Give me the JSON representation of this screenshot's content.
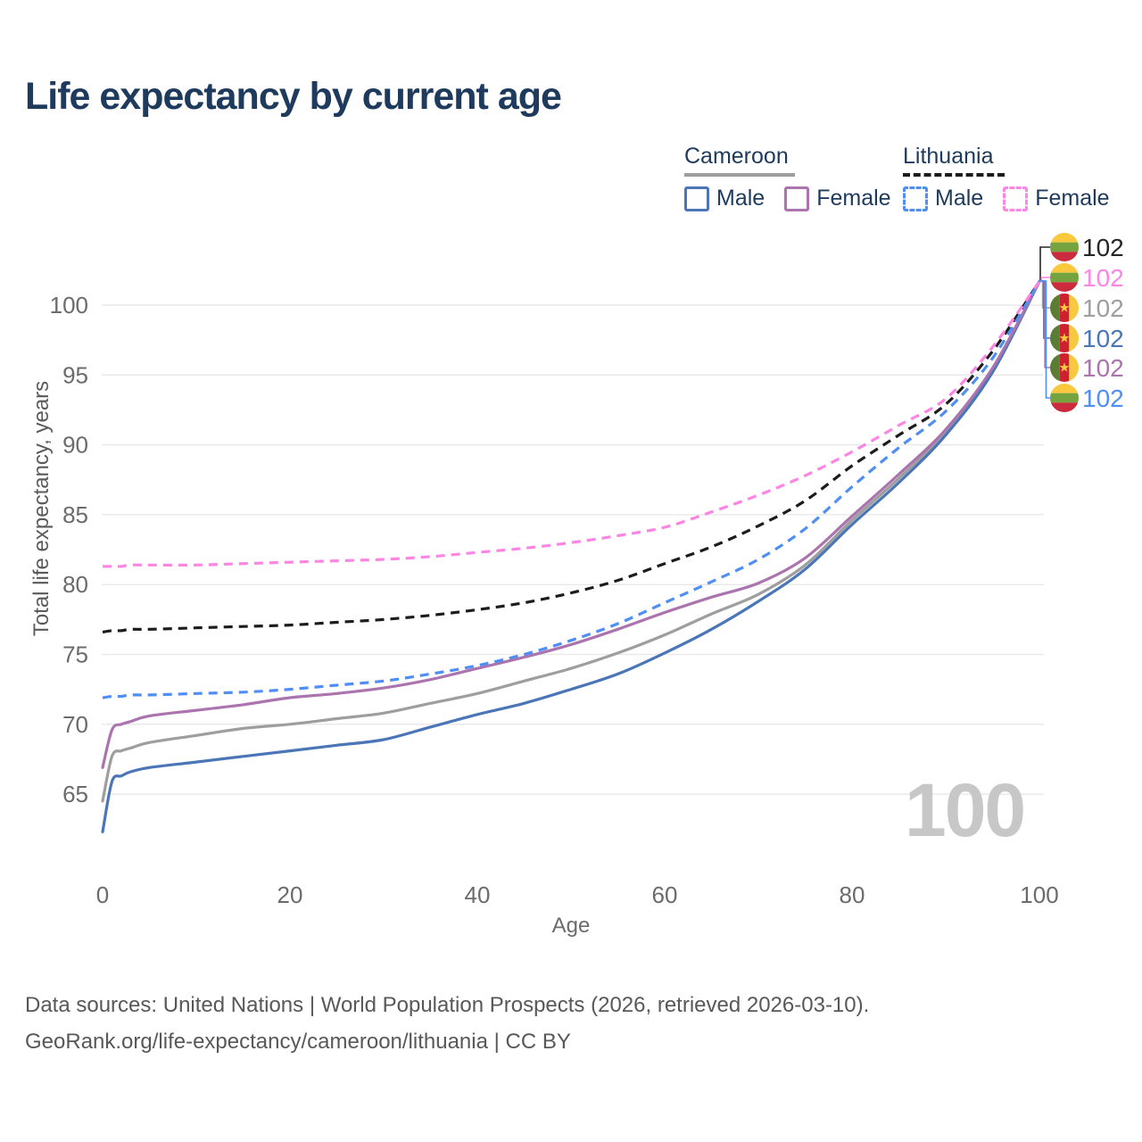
{
  "title": "Life expectancy by current age",
  "legend": {
    "cameroon": {
      "label": "Cameroon",
      "male_label": "Male",
      "female_label": "Female"
    },
    "lithuania": {
      "label": "Lithuania",
      "male_label": "Male",
      "female_label": "Female"
    }
  },
  "watermark_age": "100",
  "footer": {
    "line1": "Data sources: United Nations | World Population Prospects (2026, retrieved 2026-03-10).",
    "line2": "GeoRank.org/life-expectancy/cameroon/lithuania | CC BY"
  },
  "colors": {
    "title_text": "#1e3a5c",
    "tick_text": "#6b6b6b",
    "grid": "#e9e9e9",
    "footer_text": "#58585a",
    "watermark": "#c7c7c7",
    "cameroon_male": "#4a76b8",
    "cameroon_female": "#ab74ae",
    "cameroon_all": "#9e9e9e",
    "lithuania_male": "#4f8ef5",
    "lithuania_female": "#fd85e4",
    "lithuania_all": "#1c1c1c"
  },
  "chart_data": {
    "type": "line",
    "title": "Life expectancy by current age",
    "xlabel": "Age",
    "ylabel": "Total life expectancy, years",
    "xlim": [
      0,
      100
    ],
    "ylim": [
      62,
      103
    ],
    "xticks": [
      0,
      20,
      40,
      60,
      80,
      100
    ],
    "yticks": [
      65,
      70,
      75,
      80,
      85,
      90,
      95,
      100
    ],
    "grid": "horizontal",
    "legend_position": "top-right",
    "x": [
      0,
      1,
      2,
      3,
      5,
      10,
      15,
      20,
      25,
      30,
      35,
      40,
      45,
      50,
      55,
      60,
      65,
      70,
      75,
      80,
      85,
      90,
      95,
      100
    ],
    "series": [
      {
        "id": "cm_both",
        "name": "Cameroon",
        "country": "Cameroon",
        "color": "#9e9e9e",
        "dashed": false,
        "values": [
          64.5,
          67.7,
          68.1,
          68.3,
          68.7,
          69.2,
          69.7,
          70.0,
          70.4,
          70.8,
          71.5,
          72.2,
          73.1,
          74.0,
          75.1,
          76.4,
          77.9,
          79.3,
          81.4,
          84.6,
          87.6,
          90.9,
          95.3,
          101.7
        ]
      },
      {
        "id": "cm_male",
        "name": "Cameroon Male",
        "country": "Cameroon",
        "color": "#4a76b8",
        "dashed": false,
        "values": [
          62.3,
          65.9,
          66.3,
          66.6,
          66.9,
          67.3,
          67.7,
          68.1,
          68.5,
          68.9,
          69.8,
          70.7,
          71.5,
          72.5,
          73.6,
          75.1,
          76.8,
          78.8,
          81.1,
          84.3,
          87.3,
          90.7,
          95.2,
          101.7
        ]
      },
      {
        "id": "cm_female",
        "name": "Cameroon Female",
        "country": "Cameroon",
        "color": "#ab74ae",
        "dashed": false,
        "values": [
          66.9,
          69.6,
          70.0,
          70.2,
          70.6,
          71.0,
          71.4,
          71.9,
          72.2,
          72.6,
          73.2,
          74.0,
          74.8,
          75.7,
          76.8,
          78.0,
          79.1,
          80.1,
          81.9,
          84.9,
          87.9,
          91.1,
          95.5,
          101.7
        ]
      },
      {
        "id": "lt_both",
        "name": "Lithuania",
        "country": "Lithuania",
        "color": "#1c1c1c",
        "dashed": true,
        "values": [
          76.6,
          76.7,
          76.7,
          76.8,
          76.8,
          76.9,
          77.0,
          77.1,
          77.3,
          77.5,
          77.8,
          78.2,
          78.7,
          79.4,
          80.3,
          81.5,
          82.7,
          84.2,
          86.0,
          88.5,
          90.7,
          92.9,
          96.7,
          101.7
        ]
      },
      {
        "id": "lt_male",
        "name": "Lithuania Male",
        "country": "Lithuania",
        "color": "#4f8ef5",
        "dashed": true,
        "values": [
          71.9,
          72.0,
          72.0,
          72.1,
          72.1,
          72.2,
          72.3,
          72.5,
          72.8,
          73.1,
          73.6,
          74.2,
          75.0,
          76.0,
          77.2,
          78.7,
          80.2,
          81.8,
          84.0,
          87.0,
          89.8,
          92.4,
          96.2,
          101.7
        ]
      },
      {
        "id": "lt_female",
        "name": "Lithuania Female",
        "country": "Lithuania",
        "color": "#fd85e4",
        "dashed": true,
        "values": [
          81.3,
          81.3,
          81.3,
          81.4,
          81.4,
          81.4,
          81.5,
          81.6,
          81.7,
          81.8,
          82.0,
          82.3,
          82.6,
          83.0,
          83.5,
          84.1,
          85.2,
          86.4,
          87.8,
          89.5,
          91.4,
          93.3,
          97.0,
          101.7
        ]
      }
    ],
    "end_labels": [
      {
        "series": "lt_both",
        "flag": "lithuania",
        "value": "102",
        "color": "#262626"
      },
      {
        "series": "lt_female",
        "flag": "lithuania",
        "value": "102",
        "color": "#fd85e4"
      },
      {
        "series": "cm_both",
        "flag": "cameroon",
        "value": "102",
        "color": "#9e9e9e"
      },
      {
        "series": "cm_male",
        "flag": "cameroon",
        "value": "102",
        "color": "#4a76b8"
      },
      {
        "series": "cm_female",
        "flag": "cameroon",
        "value": "102",
        "color": "#ab74ae"
      },
      {
        "series": "lt_male",
        "flag": "lithuania",
        "value": "102",
        "color": "#4f8ef5"
      }
    ],
    "flag_colors": {
      "lithuania": {
        "yellow": "#f9c83c",
        "green": "#74a33f",
        "red": "#cc2a3d"
      },
      "cameroon": {
        "green": "#5a7d33",
        "red": "#ce2130",
        "yellow": "#f8c940",
        "star": "#f8c940"
      }
    }
  }
}
